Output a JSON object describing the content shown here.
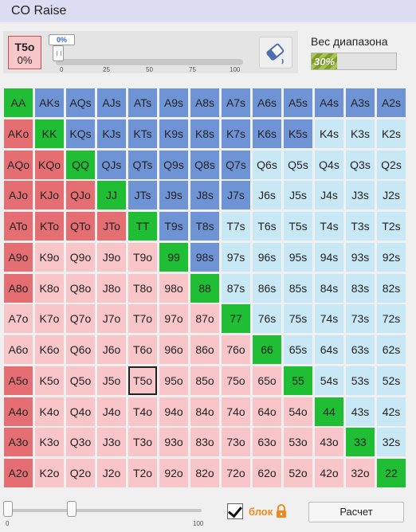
{
  "window": {
    "title": "CO Raise"
  },
  "hand_box": {
    "hand": "T5o",
    "percent": "0%"
  },
  "slider": {
    "value_label": "0%",
    "value_fraction": 0,
    "ticks": [
      "0",
      "25",
      "50",
      "75",
      "100"
    ]
  },
  "range_weight": {
    "label": "Вес диапазона",
    "value_text": "30%",
    "value_fraction": 0.3
  },
  "colors": {
    "green": "#1fbe34",
    "blue": "#6f94d6",
    "lightblue": "#c9e8f5",
    "red": "#e46e72",
    "pink": "#f8c6c8"
  },
  "grid": {
    "selected_hand": "T5o",
    "rows": [
      {
        "cells": [
          {
            "t": "AA",
            "c": "green"
          },
          {
            "t": "AKs",
            "c": "blue"
          },
          {
            "t": "AQs",
            "c": "blue"
          },
          {
            "t": "AJs",
            "c": "blue"
          },
          {
            "t": "ATs",
            "c": "blue"
          },
          {
            "t": "A9s",
            "c": "blue"
          },
          {
            "t": "A8s",
            "c": "blue"
          },
          {
            "t": "A7s",
            "c": "blue"
          },
          {
            "t": "A6s",
            "c": "blue"
          },
          {
            "t": "A5s",
            "c": "blue"
          },
          {
            "t": "A4s",
            "c": "blue"
          },
          {
            "t": "A3s",
            "c": "blue"
          },
          {
            "t": "A2s",
            "c": "blue"
          }
        ]
      },
      {
        "cells": [
          {
            "t": "AKo",
            "c": "red"
          },
          {
            "t": "KK",
            "c": "green"
          },
          {
            "t": "KQs",
            "c": "blue"
          },
          {
            "t": "KJs",
            "c": "blue"
          },
          {
            "t": "KTs",
            "c": "blue"
          },
          {
            "t": "K9s",
            "c": "blue"
          },
          {
            "t": "K8s",
            "c": "blue"
          },
          {
            "t": "K7s",
            "c": "blue"
          },
          {
            "t": "K6s",
            "c": "blue"
          },
          {
            "t": "K5s",
            "c": "blue"
          },
          {
            "t": "K4s",
            "c": "lightblue"
          },
          {
            "t": "K3s",
            "c": "lightblue"
          },
          {
            "t": "K2s",
            "c": "lightblue"
          }
        ]
      },
      {
        "cells": [
          {
            "t": "AQo",
            "c": "red"
          },
          {
            "t": "KQo",
            "c": "red"
          },
          {
            "t": "QQ",
            "c": "green"
          },
          {
            "t": "QJs",
            "c": "blue"
          },
          {
            "t": "QTs",
            "c": "blue"
          },
          {
            "t": "Q9s",
            "c": "blue"
          },
          {
            "t": "Q8s",
            "c": "blue"
          },
          {
            "t": "Q7s",
            "c": "blue"
          },
          {
            "t": "Q6s",
            "c": "lightblue"
          },
          {
            "t": "Q5s",
            "c": "lightblue"
          },
          {
            "t": "Q4s",
            "c": "lightblue"
          },
          {
            "t": "Q3s",
            "c": "lightblue"
          },
          {
            "t": "Q2s",
            "c": "lightblue"
          }
        ]
      },
      {
        "cells": [
          {
            "t": "AJo",
            "c": "red"
          },
          {
            "t": "KJo",
            "c": "red"
          },
          {
            "t": "QJo",
            "c": "red"
          },
          {
            "t": "JJ",
            "c": "green"
          },
          {
            "t": "JTs",
            "c": "blue"
          },
          {
            "t": "J9s",
            "c": "blue"
          },
          {
            "t": "J8s",
            "c": "blue"
          },
          {
            "t": "J7s",
            "c": "blue"
          },
          {
            "t": "J6s",
            "c": "lightblue"
          },
          {
            "t": "J5s",
            "c": "lightblue"
          },
          {
            "t": "J4s",
            "c": "lightblue"
          },
          {
            "t": "J3s",
            "c": "lightblue"
          },
          {
            "t": "J2s",
            "c": "lightblue"
          }
        ]
      },
      {
        "cells": [
          {
            "t": "ATo",
            "c": "red"
          },
          {
            "t": "KTo",
            "c": "red"
          },
          {
            "t": "QTo",
            "c": "red"
          },
          {
            "t": "JTo",
            "c": "red"
          },
          {
            "t": "TT",
            "c": "green"
          },
          {
            "t": "T9s",
            "c": "blue"
          },
          {
            "t": "T8s",
            "c": "blue"
          },
          {
            "t": "T7s",
            "c": "lightblue"
          },
          {
            "t": "T6s",
            "c": "lightblue"
          },
          {
            "t": "T5s",
            "c": "lightblue"
          },
          {
            "t": "T4s",
            "c": "lightblue"
          },
          {
            "t": "T3s",
            "c": "lightblue"
          },
          {
            "t": "T2s",
            "c": "lightblue"
          }
        ]
      },
      {
        "cells": [
          {
            "t": "A9o",
            "c": "red"
          },
          {
            "t": "K9o",
            "c": "pink"
          },
          {
            "t": "Q9o",
            "c": "pink"
          },
          {
            "t": "J9o",
            "c": "pink"
          },
          {
            "t": "T9o",
            "c": "pink"
          },
          {
            "t": "99",
            "c": "green"
          },
          {
            "t": "98s",
            "c": "blue"
          },
          {
            "t": "97s",
            "c": "lightblue"
          },
          {
            "t": "96s",
            "c": "lightblue"
          },
          {
            "t": "95s",
            "c": "lightblue"
          },
          {
            "t": "94s",
            "c": "lightblue"
          },
          {
            "t": "93s",
            "c": "lightblue"
          },
          {
            "t": "92s",
            "c": "lightblue"
          }
        ]
      },
      {
        "cells": [
          {
            "t": "A8o",
            "c": "red"
          },
          {
            "t": "K8o",
            "c": "pink"
          },
          {
            "t": "Q8o",
            "c": "pink"
          },
          {
            "t": "J8o",
            "c": "pink"
          },
          {
            "t": "T8o",
            "c": "pink"
          },
          {
            "t": "98o",
            "c": "pink"
          },
          {
            "t": "88",
            "c": "green"
          },
          {
            "t": "87s",
            "c": "lightblue"
          },
          {
            "t": "86s",
            "c": "lightblue"
          },
          {
            "t": "85s",
            "c": "lightblue"
          },
          {
            "t": "84s",
            "c": "lightblue"
          },
          {
            "t": "83s",
            "c": "lightblue"
          },
          {
            "t": "82s",
            "c": "lightblue"
          }
        ]
      },
      {
        "cells": [
          {
            "t": "A7o",
            "c": "pink"
          },
          {
            "t": "K7o",
            "c": "pink"
          },
          {
            "t": "Q7o",
            "c": "pink"
          },
          {
            "t": "J7o",
            "c": "pink"
          },
          {
            "t": "T7o",
            "c": "pink"
          },
          {
            "t": "97o",
            "c": "pink"
          },
          {
            "t": "87o",
            "c": "pink"
          },
          {
            "t": "77",
            "c": "green"
          },
          {
            "t": "76s",
            "c": "lightblue"
          },
          {
            "t": "75s",
            "c": "lightblue"
          },
          {
            "t": "74s",
            "c": "lightblue"
          },
          {
            "t": "73s",
            "c": "lightblue"
          },
          {
            "t": "72s",
            "c": "lightblue"
          }
        ]
      },
      {
        "cells": [
          {
            "t": "A6o",
            "c": "pink"
          },
          {
            "t": "K6o",
            "c": "pink"
          },
          {
            "t": "Q6o",
            "c": "pink"
          },
          {
            "t": "J6o",
            "c": "pink"
          },
          {
            "t": "T6o",
            "c": "pink"
          },
          {
            "t": "96o",
            "c": "pink"
          },
          {
            "t": "86o",
            "c": "pink"
          },
          {
            "t": "76o",
            "c": "pink"
          },
          {
            "t": "66",
            "c": "green"
          },
          {
            "t": "65s",
            "c": "lightblue"
          },
          {
            "t": "64s",
            "c": "lightblue"
          },
          {
            "t": "63s",
            "c": "lightblue"
          },
          {
            "t": "62s",
            "c": "lightblue"
          }
        ]
      },
      {
        "cells": [
          {
            "t": "A5o",
            "c": "red"
          },
          {
            "t": "K5o",
            "c": "pink"
          },
          {
            "t": "Q5o",
            "c": "pink"
          },
          {
            "t": "J5o",
            "c": "pink"
          },
          {
            "t": "T5o",
            "c": "pink"
          },
          {
            "t": "95o",
            "c": "pink"
          },
          {
            "t": "85o",
            "c": "pink"
          },
          {
            "t": "75o",
            "c": "pink"
          },
          {
            "t": "65o",
            "c": "pink"
          },
          {
            "t": "55",
            "c": "green"
          },
          {
            "t": "54s",
            "c": "lightblue"
          },
          {
            "t": "53s",
            "c": "lightblue"
          },
          {
            "t": "52s",
            "c": "lightblue"
          }
        ]
      },
      {
        "cells": [
          {
            "t": "A4o",
            "c": "red"
          },
          {
            "t": "K4o",
            "c": "pink"
          },
          {
            "t": "Q4o",
            "c": "pink"
          },
          {
            "t": "J4o",
            "c": "pink"
          },
          {
            "t": "T4o",
            "c": "pink"
          },
          {
            "t": "94o",
            "c": "pink"
          },
          {
            "t": "84o",
            "c": "pink"
          },
          {
            "t": "74o",
            "c": "pink"
          },
          {
            "t": "64o",
            "c": "pink"
          },
          {
            "t": "54o",
            "c": "pink"
          },
          {
            "t": "44",
            "c": "green"
          },
          {
            "t": "43s",
            "c": "lightblue"
          },
          {
            "t": "42s",
            "c": "lightblue"
          }
        ]
      },
      {
        "cells": [
          {
            "t": "A3o",
            "c": "red"
          },
          {
            "t": "K3o",
            "c": "pink"
          },
          {
            "t": "Q3o",
            "c": "pink"
          },
          {
            "t": "J3o",
            "c": "pink"
          },
          {
            "t": "T3o",
            "c": "pink"
          },
          {
            "t": "93o",
            "c": "pink"
          },
          {
            "t": "83o",
            "c": "pink"
          },
          {
            "t": "73o",
            "c": "pink"
          },
          {
            "t": "63o",
            "c": "pink"
          },
          {
            "t": "53o",
            "c": "pink"
          },
          {
            "t": "43o",
            "c": "pink"
          },
          {
            "t": "33",
            "c": "green"
          },
          {
            "t": "32s",
            "c": "lightblue"
          }
        ]
      },
      {
        "cells": [
          {
            "t": "A2o",
            "c": "red"
          },
          {
            "t": "K2o",
            "c": "pink"
          },
          {
            "t": "Q2o",
            "c": "pink"
          },
          {
            "t": "J2o",
            "c": "pink"
          },
          {
            "t": "T2o",
            "c": "pink"
          },
          {
            "t": "92o",
            "c": "pink"
          },
          {
            "t": "82o",
            "c": "pink"
          },
          {
            "t": "72o",
            "c": "pink"
          },
          {
            "t": "62o",
            "c": "pink"
          },
          {
            "t": "52o",
            "c": "pink"
          },
          {
            "t": "42o",
            "c": "pink"
          },
          {
            "t": "32o",
            "c": "pink"
          },
          {
            "t": "22",
            "c": "green"
          }
        ]
      }
    ]
  },
  "bottom": {
    "range_slider": {
      "min_label": "0",
      "max_label": "100"
    },
    "lock": {
      "checked": true,
      "label": "блок",
      "icon": "lock-icon"
    },
    "calculate_label": "Расчет"
  }
}
